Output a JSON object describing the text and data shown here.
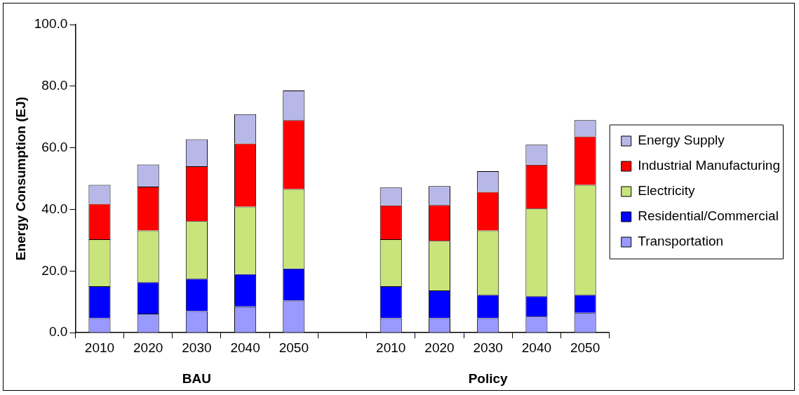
{
  "chart_data": {
    "type": "bar",
    "stacked": true,
    "ylabel": "Energy Consumption (EJ)",
    "categories": [
      "2010",
      "2020",
      "2030",
      "2040",
      "2050",
      null,
      "2010",
      "2020",
      "2030",
      "2040",
      "2050"
    ],
    "series": [
      {
        "name": "Transportation",
        "color": "#9999ff",
        "values": [
          4.7,
          6.2,
          7.0,
          8.5,
          10.4,
          null,
          4.7,
          4.7,
          4.7,
          5.2,
          6.5
        ]
      },
      {
        "name": "Residential/Commercial",
        "color": "#0000ff",
        "values": [
          10.4,
          10.2,
          10.5,
          10.5,
          10.4,
          null,
          10.4,
          9.0,
          7.6,
          6.6,
          5.8
        ]
      },
      {
        "name": "Electricity",
        "color": "#c8e47a",
        "values": [
          15.2,
          16.8,
          18.7,
          21.9,
          25.8,
          null,
          15.2,
          16.1,
          20.9,
          28.5,
          35.7
        ]
      },
      {
        "name": "Industrial Manufacturing",
        "color": "#ff0000",
        "values": [
          11.5,
          14.2,
          17.8,
          20.5,
          22.4,
          null,
          11.0,
          11.6,
          12.5,
          14.2,
          15.7
        ]
      },
      {
        "name": "Energy Supply",
        "color": "#b8b8e8",
        "values": [
          6.2,
          7.2,
          8.8,
          9.5,
          9.6,
          null,
          5.8,
          6.2,
          6.7,
          6.5,
          5.3
        ]
      }
    ],
    "annotations": [
      "BAU",
      "Policy"
    ],
    "ylim": [
      0,
      100
    ],
    "yticks": [
      {
        "value": 0,
        "label": "0.0"
      },
      {
        "value": 20,
        "label": "20.0"
      },
      {
        "value": 40,
        "label": "40.0"
      },
      {
        "value": 60,
        "label": "60.0"
      },
      {
        "value": 80,
        "label": "80.0"
      },
      {
        "value": 100,
        "label": "100.0"
      }
    ],
    "grid": false,
    "legend": "right"
  }
}
